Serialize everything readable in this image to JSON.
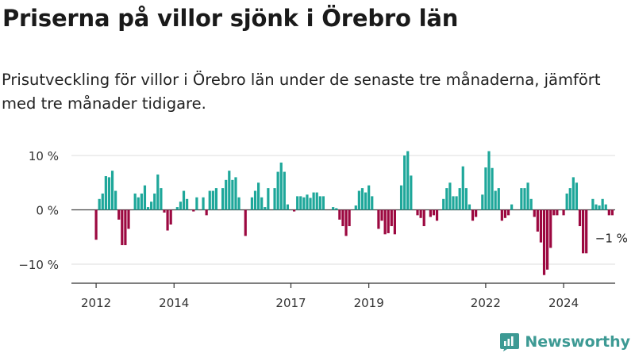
{
  "header": {
    "title": "Priserna på villor sjönk i Örebro län",
    "subtitle": "Prisutveckling för villor i Örebro län under de senaste tre månaderna, jämfört med tre månader tidigare."
  },
  "brand": {
    "name": "Newsworthy",
    "icon": "newsworthy-logo-icon",
    "color": "#3d9a94"
  },
  "colors": {
    "positive": "#1ea79a",
    "negative": "#9c0840",
    "axis": "#333333",
    "grid": "#dcdcdc"
  },
  "chart_data": {
    "type": "bar",
    "title": "",
    "xlabel": "",
    "ylabel": "",
    "ylim": [
      -14,
      12
    ],
    "y_ticks": [
      {
        "value": 10,
        "label": "10 %"
      },
      {
        "value": 0,
        "label": "0 %"
      },
      {
        "value": -10,
        "label": "−10 %"
      }
    ],
    "x_ticks": [
      {
        "year": 2012,
        "label": "2012"
      },
      {
        "year": 2014,
        "label": "2014"
      },
      {
        "year": 2017,
        "label": "2017"
      },
      {
        "year": 2019,
        "label": "2019"
      },
      {
        "year": 2022,
        "label": "2022"
      },
      {
        "year": 2024,
        "label": "2024"
      }
    ],
    "start": "2012-01",
    "end_label": "−1 %",
    "grid": "horizontal",
    "series": [
      {
        "values": [
          -5.5,
          2,
          3,
          6.2,
          6,
          7.2,
          3.5,
          -1.8,
          -6.5,
          -6.5,
          -3.5,
          0,
          3,
          2.3,
          3,
          4.5,
          0.5,
          1.5,
          3,
          6.5,
          4,
          -0.5,
          -3.8,
          -2.7,
          0,
          0.5,
          1.5,
          3.5,
          2,
          0,
          -0.3,
          2.3,
          0,
          2.3,
          -1,
          3.5,
          3.5,
          4,
          0,
          4,
          5.5,
          7.2,
          5.5,
          6,
          2.3,
          0,
          -4.8,
          0,
          2.3,
          3.5,
          5,
          2.3,
          0.5,
          4,
          0,
          4,
          7,
          8.7,
          7,
          1,
          0,
          -0.3,
          2.5,
          2.5,
          2.3,
          2.8,
          2.2,
          3.2,
          3.2,
          2.5,
          2.5,
          0,
          0,
          0.5,
          0.3,
          -1.8,
          -3,
          -4.8,
          -3,
          0,
          0.8,
          3.5,
          4,
          3.2,
          4.5,
          2.5,
          0,
          -3.5,
          -2,
          -4.5,
          -4.3,
          -3,
          -4.5,
          0,
          4.5,
          10,
          10.8,
          6.3,
          0,
          -1,
          -1.5,
          -3,
          0,
          -1.3,
          -1,
          -2,
          0,
          2,
          4,
          5,
          2.5,
          2.5,
          4,
          8,
          4,
          1,
          -2,
          -1.3,
          0,
          2.8,
          7.8,
          10.8,
          7.7,
          3.5,
          4,
          -2,
          -1.5,
          -1,
          1,
          0,
          0,
          4,
          4,
          5,
          2,
          -1.3,
          -4,
          -6,
          -12,
          -11,
          -7,
          -1,
          -1,
          0,
          -1,
          3,
          4,
          6,
          5,
          -3,
          -8,
          -8,
          0,
          2,
          1,
          0.8,
          2,
          1,
          -1,
          -1
        ]
      }
    ]
  }
}
